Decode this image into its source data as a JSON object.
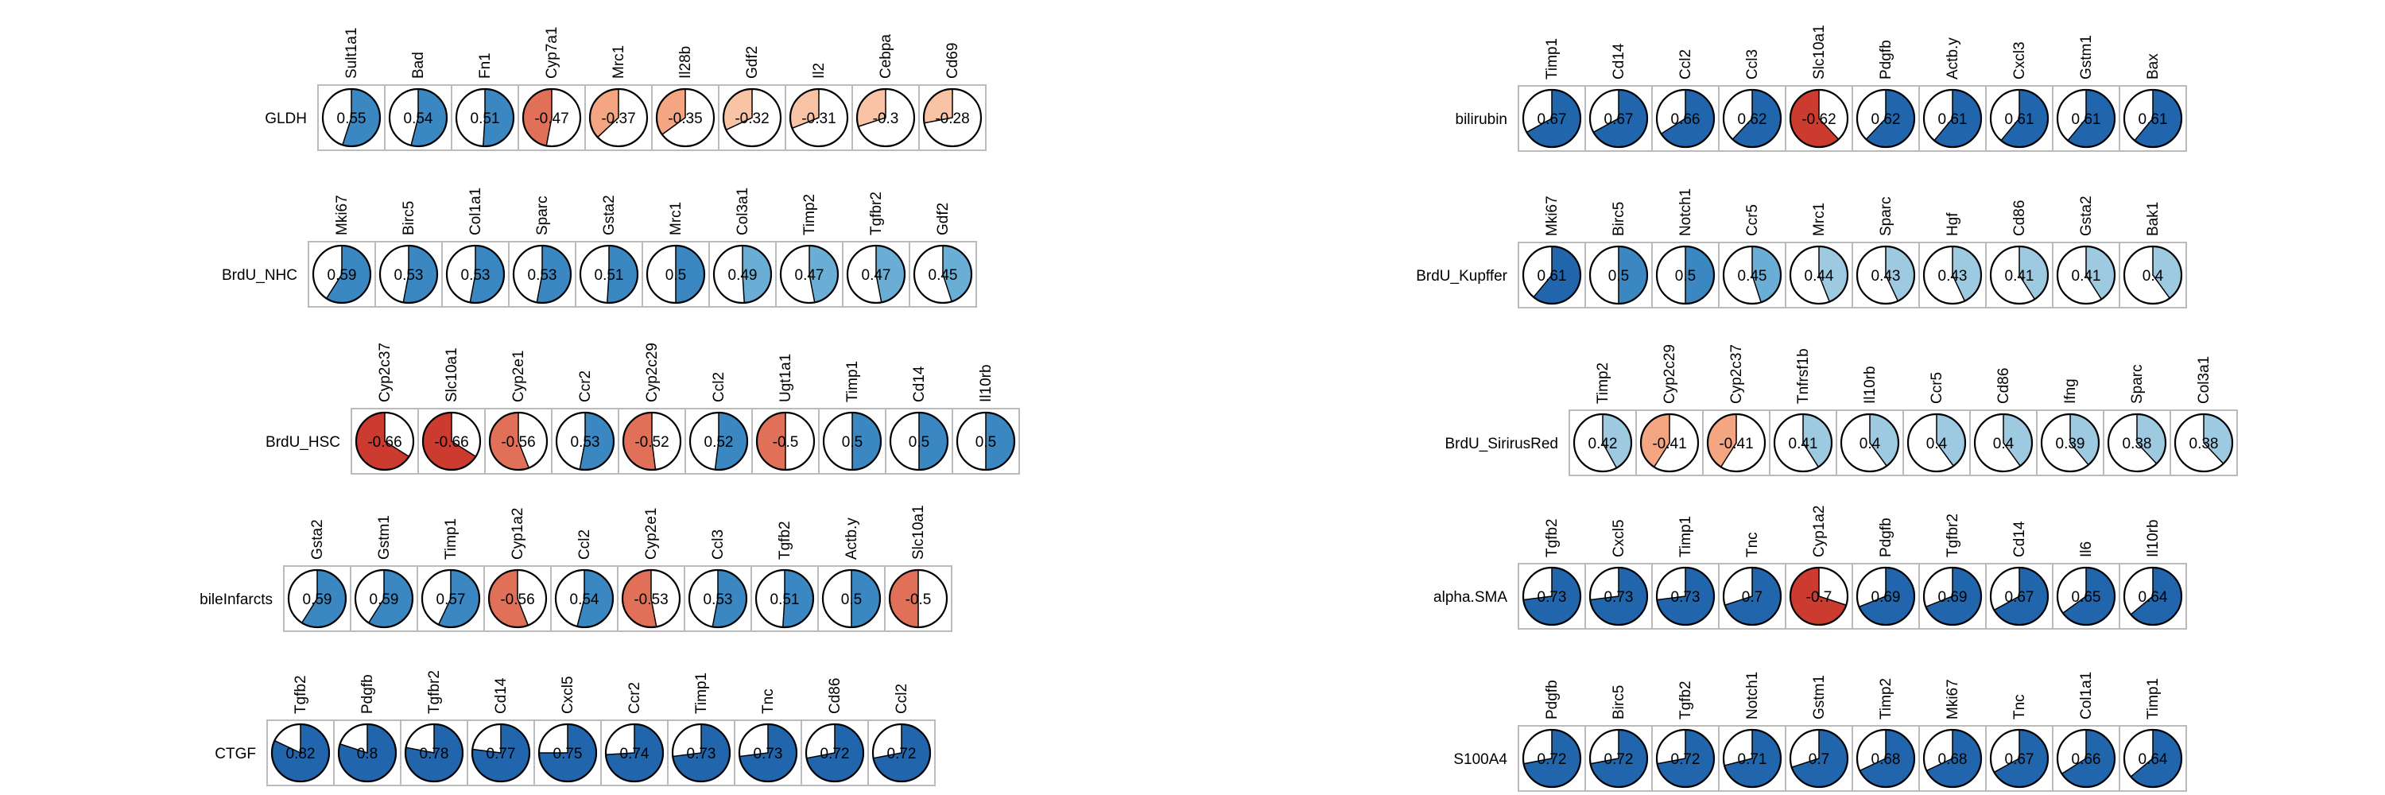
{
  "colors": {
    "pos_strong": "#2166ac",
    "pos_mid": "#3a87c1",
    "pos_light": "#6aaed6",
    "pos_pale": "#9ecae1",
    "neg_strong": "#cb3b2f",
    "neg_mid": "#e07058",
    "neg_light": "#f4a582",
    "neg_pale": "#f8c4a5",
    "box_border": "#bbbbbb",
    "circle_stroke": "#000000"
  },
  "chart_data": [
    {
      "type": "pie-grid",
      "row_label": "GLDH",
      "genes": [
        "Sult1a1",
        "Bad",
        "Fn1",
        "Cyp7a1",
        "Mrc1",
        "Il28b",
        "Gdf2",
        "Il2",
        "Cebpa",
        "Cd69"
      ],
      "values": [
        0.55,
        0.54,
        0.51,
        -0.47,
        -0.37,
        -0.35,
        -0.32,
        -0.31,
        -0.3,
        -0.28
      ],
      "labels": [
        "0.55",
        "0.54",
        "0.51",
        "-0.47",
        "-0.37",
        "-0.35",
        "-0.32",
        "-0.31",
        "-0.3",
        "-0.28"
      ]
    },
    {
      "type": "pie-grid",
      "row_label": "BrdU_NHC",
      "genes": [
        "Mki67",
        "Birc5",
        "Col1a1",
        "Sparc",
        "Gsta2",
        "Mrc1",
        "Col3a1",
        "Timp2",
        "Tgfbr2",
        "Gdf2"
      ],
      "values": [
        0.59,
        0.53,
        0.53,
        0.53,
        0.51,
        0.5,
        0.49,
        0.47,
        0.47,
        0.45
      ],
      "labels": [
        "0.59",
        "0.53",
        "0.53",
        "0.53",
        "0.51",
        "0.5",
        "0.49",
        "0.47",
        "0.47",
        "0.45"
      ]
    },
    {
      "type": "pie-grid",
      "row_label": "BrdU_HSC",
      "genes": [
        "Cyp2c37",
        "Slc10a1",
        "Cyp2e1",
        "Ccr2",
        "Cyp2c29",
        "Ccl2",
        "Ugt1a1",
        "Timp1",
        "Cd14",
        "Il10rb"
      ],
      "values": [
        -0.66,
        -0.66,
        -0.56,
        0.53,
        -0.52,
        0.52,
        -0.5,
        0.5,
        0.5,
        0.5
      ],
      "labels": [
        "-0.66",
        "-0.66",
        "-0.56",
        "0.53",
        "-0.52",
        "0.52",
        "-0.5",
        "0.5",
        "0.5",
        "0.5"
      ]
    },
    {
      "type": "pie-grid",
      "row_label": "bileInfarcts",
      "genes": [
        "Gsta2",
        "Gstm1",
        "Timp1",
        "Cyp1a2",
        "Ccl2",
        "Cyp2e1",
        "Ccl3",
        "Tgfb2",
        "Actb.y",
        "Slc10a1"
      ],
      "values": [
        0.59,
        0.59,
        0.57,
        -0.56,
        0.54,
        -0.53,
        0.53,
        0.51,
        0.5,
        -0.5
      ],
      "labels": [
        "0.59",
        "0.59",
        "0.57",
        "-0.56",
        "0.54",
        "-0.53",
        "0.53",
        "0.51",
        "0.5",
        "-0.5"
      ]
    },
    {
      "type": "pie-grid",
      "row_label": "CTGF",
      "genes": [
        "Tgfb2",
        "Pdgfb",
        "Tgfbr2",
        "Cd14",
        "Cxcl5",
        "Ccr2",
        "Timp1",
        "Tnc",
        "Cd86",
        "Ccl2"
      ],
      "values": [
        0.82,
        0.8,
        0.78,
        0.77,
        0.75,
        0.74,
        0.73,
        0.73,
        0.72,
        0.72
      ],
      "labels": [
        "0.82",
        "0.8",
        "0.78",
        "0.77",
        "0.75",
        "0.74",
        "0.73",
        "0.73",
        "0.72",
        "0.72"
      ]
    },
    {
      "type": "pie-grid",
      "row_label": "bilirubin",
      "genes": [
        "Timp1",
        "Cd14",
        "Ccl2",
        "Ccl3",
        "Slc10a1",
        "Pdgfb",
        "Actb.y",
        "Cxcl3",
        "Gstm1",
        "Bax"
      ],
      "values": [
        0.67,
        0.67,
        0.66,
        0.62,
        -0.62,
        0.62,
        0.61,
        0.61,
        0.61,
        0.61
      ],
      "labels": [
        "0.67",
        "0.67",
        "0.66",
        "0.62",
        "-0.62",
        "0.62",
        "0.61",
        "0.61",
        "0.61",
        "0.61"
      ]
    },
    {
      "type": "pie-grid",
      "row_label": "BrdU_Kupffer",
      "genes": [
        "Mki67",
        "Birc5",
        "Notch1",
        "Ccr5",
        "Mrc1",
        "Sparc",
        "Hgf",
        "Cd86",
        "Gsta2",
        "Bak1"
      ],
      "values": [
        0.61,
        0.5,
        0.5,
        0.45,
        0.44,
        0.43,
        0.43,
        0.41,
        0.41,
        0.4
      ],
      "labels": [
        "0.61",
        "0.5",
        "0.5",
        "0.45",
        "0.44",
        "0.43",
        "0.43",
        "0.41",
        "0.41",
        "0.4"
      ]
    },
    {
      "type": "pie-grid",
      "row_label": "BrdU_SirirusRed",
      "genes": [
        "Timp2",
        "Cyp2c29",
        "Cyp2c37",
        "Tnfrsf1b",
        "Il10rb",
        "Ccr5",
        "Cd86",
        "Ifng",
        "Sparc",
        "Col3a1"
      ],
      "values": [
        0.42,
        -0.41,
        -0.41,
        0.41,
        0.4,
        0.4,
        0.4,
        0.39,
        0.38,
        0.38
      ],
      "labels": [
        "0.42",
        "-0.41",
        "-0.41",
        "0.41",
        "0.4",
        "0.4",
        "0.4",
        "0.39",
        "0.38",
        "0.38"
      ]
    },
    {
      "type": "pie-grid",
      "row_label": "alpha.SMA",
      "genes": [
        "Tgfb2",
        "Cxcl5",
        "Timp1",
        "Tnc",
        "Cyp1a2",
        "Pdgfb",
        "Tgfbr2",
        "Cd14",
        "Il6",
        "Il10rb"
      ],
      "values": [
        0.73,
        0.73,
        0.73,
        0.7,
        -0.7,
        0.69,
        0.69,
        0.67,
        0.65,
        0.64
      ],
      "labels": [
        "0.73",
        "0.73",
        "0.73",
        "0.7",
        "-0.7",
        "0.69",
        "0.69",
        "0.67",
        "0.65",
        "0.64"
      ]
    },
    {
      "type": "pie-grid",
      "row_label": "S100A4",
      "genes": [
        "Pdgfb",
        "Birc5",
        "Tgfb2",
        "Notch1",
        "Gstm1",
        "Timp2",
        "Mki67",
        "Tnc",
        "Col1a1",
        "Timp1"
      ],
      "values": [
        0.72,
        0.72,
        0.72,
        0.71,
        0.7,
        0.68,
        0.68,
        0.67,
        0.66,
        0.64
      ],
      "labels": [
        "0.72",
        "0.72",
        "0.72",
        "0.71",
        "0.7",
        "0.68",
        "0.68",
        "0.67",
        "0.66",
        "0.64"
      ]
    }
  ]
}
